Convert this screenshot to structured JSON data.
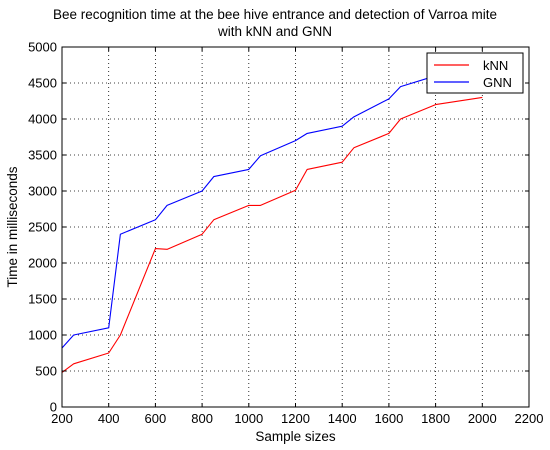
{
  "chart_data": {
    "type": "line",
    "title": [
      "Bee recognition time at the bee hive entrance and detection of Varroa mite",
      "with kNN and GNN"
    ],
    "xlabel": "Sample sizes",
    "ylabel": "Time in milliseconds",
    "xlim": [
      200,
      2200
    ],
    "ylim": [
      0,
      5000
    ],
    "xticks": [
      200,
      400,
      600,
      800,
      1000,
      1200,
      1400,
      1600,
      1800,
      2000,
      2200
    ],
    "yticks": [
      0,
      500,
      1000,
      1500,
      2000,
      2500,
      3000,
      3500,
      4000,
      4500,
      5000
    ],
    "grid": true,
    "grid_style": "dotted",
    "legend_position": "top-right",
    "series": [
      {
        "name": "kNN",
        "color": "#ff0000",
        "points": [
          [
            200,
            480
          ],
          [
            250,
            600
          ],
          [
            400,
            750
          ],
          [
            450,
            1000
          ],
          [
            600,
            2200
          ],
          [
            650,
            2190
          ],
          [
            800,
            2400
          ],
          [
            850,
            2600
          ],
          [
            1000,
            2800
          ],
          [
            1050,
            2800
          ],
          [
            1200,
            3010
          ],
          [
            1250,
            3300
          ],
          [
            1400,
            3400
          ],
          [
            1450,
            3600
          ],
          [
            1600,
            3800
          ],
          [
            1650,
            4000
          ],
          [
            1800,
            4200
          ],
          [
            2000,
            4300
          ],
          [
            2000,
            4300
          ]
        ]
      },
      {
        "name": "GNN",
        "color": "#0000ff",
        "points": [
          [
            200,
            820
          ],
          [
            250,
            1000
          ],
          [
            400,
            1100
          ],
          [
            450,
            2400
          ],
          [
            600,
            2600
          ],
          [
            650,
            2800
          ],
          [
            800,
            3000
          ],
          [
            850,
            3200
          ],
          [
            1000,
            3300
          ],
          [
            1050,
            3490
          ],
          [
            1200,
            3700
          ],
          [
            1250,
            3800
          ],
          [
            1400,
            3900
          ],
          [
            1450,
            4030
          ],
          [
            1600,
            4280
          ],
          [
            1650,
            4450
          ],
          [
            1800,
            4600
          ],
          [
            1850,
            4690
          ]
        ]
      }
    ]
  }
}
